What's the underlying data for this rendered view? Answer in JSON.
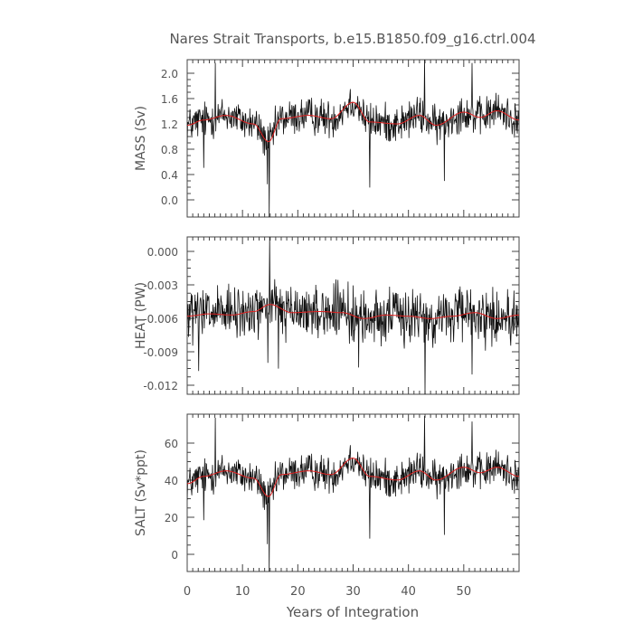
{
  "chart_data": {
    "title": "Nares Strait Transports, b.e15.B1850.f09_g16.ctrl.004",
    "xlabel": "Years of Integration",
    "xlim": [
      0,
      60
    ],
    "xticks": [
      "0",
      "10",
      "20",
      "30",
      "40",
      "50"
    ],
    "panels": [
      {
        "type": "line",
        "ylabel": "MASS (Sv)",
        "ylim": [
          -0.2,
          2.2
        ],
        "yticks": [
          "0.0",
          "0.4",
          "0.8",
          "1.2",
          "1.6",
          "2.0"
        ],
        "mean": 1.3,
        "noise": 0.2,
        "ymin_clip": -0.2,
        "spikes": [
          [
            5.1,
            2.15
          ],
          [
            14.8,
            -0.2
          ],
          [
            14.5,
            0.3
          ],
          [
            42.9,
            2.2
          ],
          [
            51.5,
            2.15
          ],
          [
            33.0,
            0.25
          ],
          [
            46.5,
            0.35
          ],
          [
            3.0,
            0.55
          ]
        ],
        "smooth_anchors": [
          [
            0,
            1.2
          ],
          [
            3,
            1.28
          ],
          [
            7,
            1.35
          ],
          [
            12,
            1.22
          ],
          [
            14.7,
            0.95
          ],
          [
            17,
            1.3
          ],
          [
            22,
            1.35
          ],
          [
            26,
            1.3
          ],
          [
            30,
            1.55
          ],
          [
            33,
            1.25
          ],
          [
            38,
            1.22
          ],
          [
            42,
            1.35
          ],
          [
            45,
            1.2
          ],
          [
            50,
            1.4
          ],
          [
            53,
            1.32
          ],
          [
            56,
            1.42
          ],
          [
            60,
            1.28
          ]
        ]
      },
      {
        "type": "line",
        "ylabel": "HEAT (PW)",
        "ylim": [
          -0.0125,
          0.001
        ],
        "yticks": [
          "0.000",
          "-0.003",
          "-0.006",
          "-0.009",
          "-0.012"
        ],
        "mean": -0.0058,
        "noise": 0.0016,
        "ymin_clip": -0.0125,
        "spikes": [
          [
            14.9,
            0.001
          ],
          [
            43.0,
            -0.0125
          ],
          [
            2.1,
            -0.0105
          ],
          [
            16.5,
            -0.0103
          ],
          [
            31.0,
            -0.0102
          ],
          [
            51.5,
            -0.0108
          ],
          [
            14.6,
            -0.0098
          ]
        ],
        "smooth_anchors": [
          [
            0,
            -0.0058
          ],
          [
            4,
            -0.0056
          ],
          [
            8,
            -0.0057
          ],
          [
            12,
            -0.0054
          ],
          [
            15,
            -0.0048
          ],
          [
            19,
            -0.0055
          ],
          [
            24,
            -0.0054
          ],
          [
            28,
            -0.0055
          ],
          [
            32,
            -0.006
          ],
          [
            36,
            -0.0057
          ],
          [
            40,
            -0.0058
          ],
          [
            44,
            -0.006
          ],
          [
            48,
            -0.0058
          ],
          [
            52,
            -0.0055
          ],
          [
            56,
            -0.006
          ],
          [
            60,
            -0.0057
          ]
        ]
      },
      {
        "type": "line",
        "ylabel": "SALT (Sv*ppt)",
        "ylim": [
          -10,
          76
        ],
        "yticks": [
          "0",
          "20",
          "40",
          "60"
        ],
        "mean": 43,
        "noise": 7,
        "ymin_clip": -10,
        "spikes": [
          [
            5.1,
            74
          ],
          [
            14.8,
            -10
          ],
          [
            14.5,
            5
          ],
          [
            42.9,
            75
          ],
          [
            51.5,
            72
          ],
          [
            33.0,
            8
          ],
          [
            46.5,
            10
          ],
          [
            3.0,
            18
          ]
        ],
        "smooth_anchors": [
          [
            0,
            38
          ],
          [
            3,
            42
          ],
          [
            7,
            45
          ],
          [
            12,
            41
          ],
          [
            14.7,
            31
          ],
          [
            17,
            43
          ],
          [
            22,
            45
          ],
          [
            26,
            43
          ],
          [
            30,
            52
          ],
          [
            33,
            42
          ],
          [
            38,
            40
          ],
          [
            42,
            45
          ],
          [
            45,
            40
          ],
          [
            50,
            47
          ],
          [
            53,
            44
          ],
          [
            56,
            47
          ],
          [
            60,
            42
          ]
        ]
      }
    ]
  }
}
